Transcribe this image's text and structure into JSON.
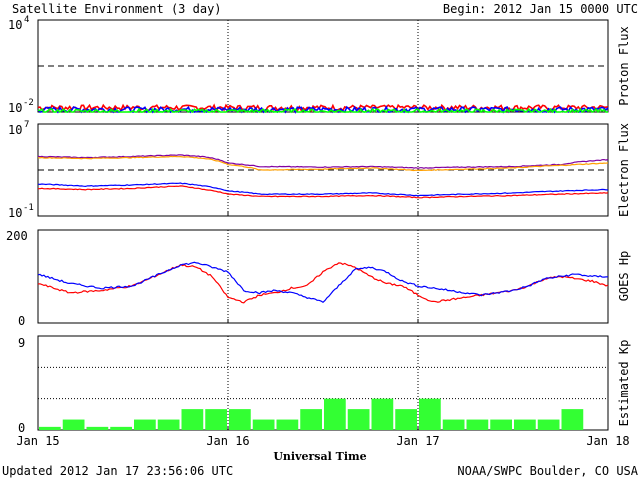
{
  "header": {
    "title": "Satellite Environment (3 day)",
    "begin": "Begin:  2012 Jan 15 0000 UTC"
  },
  "footer": {
    "updated": "Updated 2012 Jan 17 23:56:06 UTC",
    "credit": "NOAA/SWPC Boulder, CO USA"
  },
  "x_axis": {
    "title": "Universal Time",
    "ticks": [
      "Jan 15",
      "Jan 16",
      "Jan 17",
      "Jan 18"
    ],
    "range_hours": [
      0,
      72
    ],
    "day_divider_hours": [
      24,
      48
    ]
  },
  "colors": {
    "red": "#ff0000",
    "blue": "#0000ff",
    "green": "#00ff00",
    "purple": "#8000a0",
    "orange": "#ffa000",
    "kp_bar": "#33ff33"
  },
  "chart_data": [
    {
      "type": "line",
      "panel": "proton",
      "ylabel": "Proton Flux",
      "scale": "log",
      "ylim": [
        0.01,
        10000
      ],
      "ytick_labels": [
        {
          "base": "10",
          "exp": "4",
          "value": 10000
        },
        {
          "base": "10",
          "exp": "-2",
          "value": 0.01
        }
      ],
      "threshold": 10,
      "series": [
        {
          "color": "red",
          "level": 0.02
        },
        {
          "color": "blue",
          "level": 0.015
        },
        {
          "color": "green",
          "level": 0.011
        }
      ]
    },
    {
      "type": "line",
      "panel": "electron",
      "ylabel": "Electron Flux",
      "scale": "log",
      "ylim": [
        0.1,
        10000000
      ],
      "ytick_labels": [
        {
          "base": "10",
          "exp": "7",
          "value": 10000000
        },
        {
          "base": "10",
          "exp": "-1",
          "value": 0.1
        }
      ],
      "threshold": 1000,
      "series": [
        {
          "color": "purple",
          "x": [
            0,
            6,
            12,
            18,
            21,
            24,
            28,
            36,
            42,
            48,
            54,
            60,
            66,
            72
          ],
          "y": [
            15000,
            12000,
            15000,
            20000,
            14000,
            4000,
            2000,
            1800,
            2000,
            1500,
            1800,
            2000,
            3000,
            8000
          ]
        },
        {
          "color": "orange",
          "x": [
            0,
            6,
            12,
            18,
            21,
            24,
            28,
            36,
            42,
            48,
            54,
            60,
            66,
            72
          ],
          "y": [
            12000,
            10000,
            12000,
            15000,
            10000,
            3000,
            1000,
            1200,
            1500,
            900,
            1200,
            1500,
            2500,
            4000
          ]
        },
        {
          "color": "blue",
          "x": [
            0,
            6,
            12,
            18,
            21,
            24,
            28,
            36,
            42,
            48,
            54,
            60,
            66,
            72
          ],
          "y": [
            60,
            40,
            50,
            70,
            40,
            15,
            8,
            8,
            10,
            6,
            8,
            10,
            15,
            20
          ]
        },
        {
          "color": "red",
          "x": [
            0,
            6,
            12,
            18,
            21,
            24,
            28,
            36,
            42,
            48,
            54,
            60,
            66,
            72
          ],
          "y": [
            25,
            20,
            25,
            40,
            20,
            8,
            5,
            5,
            6,
            4,
            5,
            6,
            8,
            10
          ]
        }
      ]
    },
    {
      "type": "line",
      "panel": "goes-hp",
      "ylabel": "GOES Hp",
      "scale": "linear",
      "ylim": [
        0,
        200
      ],
      "ytick_labels": [
        "200",
        "0"
      ],
      "series": [
        {
          "color": "red",
          "x": [
            0,
            4,
            8,
            12,
            16,
            18,
            20,
            22,
            24,
            26,
            28,
            30,
            32,
            34,
            36,
            38,
            40,
            42,
            44,
            46,
            48,
            50,
            52,
            54,
            56,
            58,
            60,
            62,
            64,
            66,
            68,
            70,
            72
          ],
          "y": [
            85,
            65,
            70,
            80,
            110,
            125,
            120,
            100,
            55,
            45,
            60,
            65,
            75,
            80,
            110,
            130,
            120,
            100,
            85,
            80,
            60,
            45,
            50,
            55,
            60,
            65,
            70,
            80,
            95,
            100,
            95,
            90,
            80
          ]
        },
        {
          "color": "blue",
          "x": [
            0,
            4,
            8,
            12,
            16,
            18,
            20,
            22,
            24,
            26,
            28,
            30,
            32,
            34,
            36,
            38,
            40,
            42,
            44,
            46,
            48,
            50,
            52,
            54,
            56,
            58,
            60,
            62,
            64,
            66,
            68,
            70,
            72
          ],
          "y": [
            105,
            85,
            75,
            80,
            110,
            125,
            130,
            120,
            110,
            70,
            65,
            70,
            65,
            55,
            45,
            80,
            115,
            120,
            110,
            90,
            80,
            75,
            70,
            65,
            60,
            65,
            70,
            80,
            95,
            100,
            105,
            100,
            100
          ]
        }
      ]
    },
    {
      "type": "bar",
      "panel": "kp",
      "ylabel": "Estimated Kp",
      "ylim": [
        0,
        9
      ],
      "ytick_labels": [
        "9",
        "0"
      ],
      "bar_width_hours": 3,
      "x_start_hours": [
        0,
        3,
        6,
        9,
        12,
        15,
        18,
        21,
        24,
        27,
        30,
        33,
        36,
        39,
        42,
        45,
        48,
        51,
        54,
        57,
        60,
        63,
        66,
        69
      ],
      "values": [
        0.3,
        1,
        0.3,
        0.3,
        1,
        1,
        2,
        2,
        2,
        1,
        1,
        2,
        3,
        2,
        3,
        2,
        3,
        1,
        1,
        1,
        1,
        1,
        2,
        0
      ]
    }
  ]
}
